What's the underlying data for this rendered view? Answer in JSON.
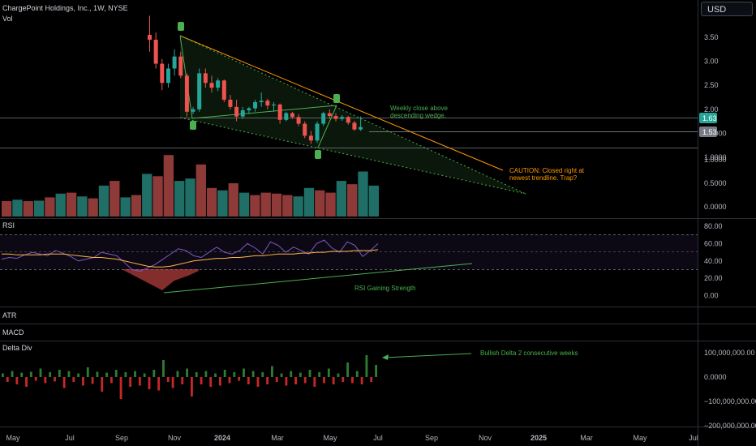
{
  "header": {
    "symbol_line": "ChargePoint Holdings, Inc., 1W, NYSE",
    "vol_label": "Vol"
  },
  "currency": "USD",
  "colors": {
    "up": "#26a69a",
    "down": "#ef5350",
    "annotation_green": "#4caf50",
    "annotation_orange": "#ff9800",
    "rsi_line": "#7e57c2",
    "rsi_ma": "#ffb74d"
  },
  "chart_data": [
    {
      "type": "candlestick",
      "title": "ChargePoint Holdings, Inc., 1W, NYSE",
      "x_axis_labels": [
        "May",
        "Jul",
        "Sep",
        "Nov",
        "2024",
        "Mar",
        "May",
        "Jul",
        "Sep",
        "Nov",
        "2025",
        "Mar",
        "May",
        "Jul"
      ],
      "price_ticks": [
        "3.50",
        "3.00",
        "2.50",
        "2.00",
        "1.5000",
        "1.0000"
      ],
      "price_ticks_scale": [
        3.5,
        3.0,
        2.5,
        2.0,
        1.5,
        1.0
      ],
      "last_price": "1.63",
      "prior_level": "1.53",
      "ylim": [
        0.35,
        3.95
      ],
      "ohlc": [
        [
          3.55,
          3.95,
          3.2,
          3.45
        ],
        [
          3.45,
          3.6,
          2.85,
          2.95
        ],
        [
          2.95,
          3.05,
          2.4,
          2.55
        ],
        [
          2.55,
          2.95,
          2.45,
          2.85
        ],
        [
          2.85,
          3.25,
          2.7,
          3.1
        ],
        [
          3.1,
          3.2,
          2.65,
          2.7
        ],
        [
          2.7,
          2.75,
          1.85,
          1.95
        ],
        [
          1.95,
          2.05,
          1.9,
          2.0
        ],
        [
          2.0,
          2.85,
          1.95,
          2.75
        ],
        [
          2.75,
          2.85,
          2.45,
          2.55
        ],
        [
          2.55,
          2.7,
          2.35,
          2.45
        ],
        [
          2.45,
          2.65,
          2.38,
          2.6
        ],
        [
          2.6,
          2.62,
          2.15,
          2.2
        ],
        [
          2.2,
          2.3,
          2.0,
          2.05
        ],
        [
          2.05,
          2.2,
          1.75,
          1.85
        ],
        [
          1.85,
          2.05,
          1.8,
          1.98
        ],
        [
          1.98,
          2.05,
          1.9,
          2.02
        ],
        [
          2.02,
          2.2,
          1.95,
          2.15
        ],
        [
          2.15,
          2.35,
          2.05,
          2.18
        ],
        [
          2.18,
          2.22,
          2.0,
          2.08
        ],
        [
          2.08,
          2.15,
          1.95,
          2.1
        ],
        [
          2.1,
          2.12,
          1.7,
          1.78
        ],
        [
          1.78,
          1.95,
          1.75,
          1.92
        ],
        [
          1.92,
          1.95,
          1.8,
          1.84
        ],
        [
          1.84,
          1.9,
          1.65,
          1.7
        ],
        [
          1.7,
          1.75,
          1.4,
          1.45
        ],
        [
          1.45,
          1.55,
          1.28,
          1.35
        ],
        [
          1.35,
          1.75,
          1.3,
          1.7
        ],
        [
          1.7,
          1.95,
          1.65,
          1.92
        ],
        [
          1.92,
          2.0,
          1.8,
          1.86
        ],
        [
          1.86,
          1.92,
          1.75,
          1.8
        ],
        [
          1.8,
          1.88,
          1.76,
          1.84
        ],
        [
          1.84,
          1.86,
          1.68,
          1.72
        ],
        [
          1.72,
          1.76,
          1.55,
          1.58
        ],
        [
          1.58,
          1.85,
          1.55,
          1.63
        ]
      ],
      "volume": {
        "ticks": [
          "1.0000",
          "0.5000",
          "0.0000"
        ],
        "values": [
          0.12,
          0.15,
          0.12,
          0.13,
          0.2,
          0.28,
          0.3,
          0.22,
          0.18,
          0.45,
          0.55,
          0.2,
          0.25,
          0.7,
          0.65,
          1.1,
          0.55,
          0.6,
          0.9,
          0.4,
          0.35,
          0.5,
          0.3,
          0.25,
          0.3,
          0.28,
          0.25,
          0.22,
          0.4,
          0.35,
          0.3,
          0.55,
          0.48,
          0.75,
          0.45
        ],
        "up": [
          false,
          true,
          false,
          true,
          false,
          true,
          false,
          true,
          false,
          true,
          false,
          true,
          false,
          true,
          false,
          false,
          true,
          true,
          false,
          false,
          true,
          false,
          true,
          false,
          false,
          false,
          false,
          true,
          true,
          false,
          false,
          true,
          false,
          true,
          true
        ]
      },
      "annotations": {
        "green_note": "Weekly close above descending wedge.",
        "orange_note": "CAUTION: Closed right at newest trendline. Trap?"
      }
    },
    {
      "type": "line",
      "title": "RSI",
      "ticks": [
        "80.00",
        "60.00",
        "40.00",
        "20.00",
        "0.00"
      ],
      "ylim": [
        0,
        80
      ],
      "series": [
        {
          "values": [
            42,
            44,
            43,
            47,
            50,
            48,
            46,
            52,
            49,
            45,
            40,
            42,
            44,
            50,
            48,
            46,
            38,
            30,
            28,
            32,
            36,
            42,
            48,
            54,
            52,
            46,
            44,
            50,
            56,
            50,
            48,
            52,
            60,
            55,
            48,
            62,
            58,
            50,
            56,
            52,
            48,
            60,
            64,
            55,
            50,
            62,
            58,
            45,
            52,
            60
          ]
        },
        {
          "values": [
            48,
            48,
            47,
            47,
            47,
            47,
            48,
            48,
            48,
            47,
            46,
            45,
            44,
            44,
            43,
            42,
            40,
            38,
            36,
            34,
            33,
            33,
            34,
            36,
            38,
            40,
            41,
            42,
            43,
            43,
            44,
            44,
            45,
            46,
            46,
            47,
            48,
            48,
            48,
            49,
            49,
            50,
            50,
            51,
            51,
            51,
            52,
            52,
            52,
            53
          ]
        }
      ],
      "annotation": "RSI Gaining Strength"
    },
    {
      "type": "bar",
      "title": "ATR"
    },
    {
      "type": "bar",
      "title": "MACD"
    },
    {
      "type": "bar",
      "title": "Delta Div",
      "ticks": [
        "100,000,000.00",
        "0.0000",
        "−100,000,000.00",
        "−200,000,000.00"
      ],
      "ylim": [
        -210000000,
        110000000
      ],
      "values": [
        15,
        -20,
        25,
        -30,
        18,
        -40,
        22,
        -15,
        35,
        -25,
        20,
        -18,
        30,
        -45,
        25,
        -20,
        15,
        -35,
        40,
        -28,
        22,
        -60,
        18,
        -25,
        30,
        -90,
        20,
        -40,
        25,
        -35,
        15,
        -50,
        30,
        -55,
        70,
        -20,
        -45,
        25,
        -30,
        35,
        -80,
        20,
        -30,
        25,
        -40,
        15,
        -35,
        30,
        -25,
        20,
        -15,
        35,
        -30,
        25,
        -40,
        20,
        -30,
        45,
        -20,
        15,
        -35,
        25,
        -30,
        18,
        -25,
        30,
        -40,
        20,
        -25,
        35,
        -30,
        15,
        -20,
        60,
        -25,
        25,
        -30,
        90,
        -20,
        50
      ],
      "annotation": "Bullish Delta 2 consecutive weeks"
    }
  ]
}
